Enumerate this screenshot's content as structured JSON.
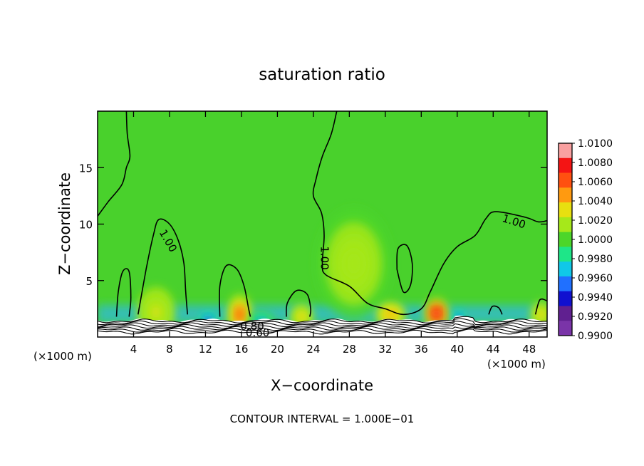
{
  "chart_data": {
    "type": "heatmap",
    "title": "saturation ratio",
    "xlabel": "X−coordinate",
    "ylabel": "Z−coordinate",
    "x_unit": "(×1000 m)",
    "x_unit_right": "(×1000 m)",
    "xlim": [
      0,
      50
    ],
    "ylim": [
      0,
      20
    ],
    "x_ticks": [
      4,
      8,
      12,
      16,
      20,
      24,
      28,
      32,
      36,
      40,
      44,
      48
    ],
    "y_ticks": [
      5,
      10,
      15
    ],
    "footer": "CONTOUR INTERVAL = 1.000E−01",
    "colorbar": {
      "labels": [
        "1.0100",
        "1.0080",
        "1.0060",
        "1.0040",
        "1.0020",
        "1.0000",
        "0.9980",
        "0.9960",
        "0.9940",
        "0.9920",
        "0.9900"
      ],
      "colors": [
        "#f9a0a0",
        "#f41414",
        "#ff5010",
        "#ff9a10",
        "#e8e010",
        "#a6e81a",
        "#4cd62a",
        "#1ee688",
        "#10c8e8",
        "#2070ff",
        "#1010d0",
        "#602090",
        "#7a34a8"
      ]
    },
    "contour_labels": [
      {
        "text": "1.00",
        "x": 7.8,
        "z": 8.5,
        "rotate": 60
      },
      {
        "text": "1.00",
        "x": 25.2,
        "z": 7.0,
        "rotate": 90
      },
      {
        "text": "1.00",
        "x": 46.3,
        "z": 10.2,
        "rotate": 18
      },
      {
        "text": "0.80",
        "x": 17.2,
        "z": 0.9,
        "rotate": 0
      },
      {
        "text": "0.60",
        "x": 17.8,
        "z": 0.35,
        "rotate": 0
      }
    ],
    "field": {
      "base_color": "#49d12c",
      "surface_band_color": "#35c0b0",
      "plumes": [
        {
          "x": 6.5,
          "z": 2.2,
          "sx": 1.5,
          "sz": 1.6,
          "level": 1.0028
        },
        {
          "x": 15.8,
          "z": 2.0,
          "sx": 1.0,
          "sz": 1.3,
          "level": 1.006
        },
        {
          "x": 22.7,
          "z": 1.8,
          "sx": 0.9,
          "sz": 0.8,
          "level": 1.0035
        },
        {
          "x": 28.5,
          "z": 6.5,
          "sx": 3.0,
          "sz": 3.5,
          "level": 1.0012
        },
        {
          "x": 32.6,
          "z": 2.0,
          "sx": 1.2,
          "sz": 0.8,
          "level": 1.0045
        },
        {
          "x": 37.7,
          "z": 2.1,
          "sx": 1.0,
          "sz": 1.0,
          "level": 1.0075
        },
        {
          "x": 49.3,
          "z": 2.0,
          "sx": 0.8,
          "sz": 0.8,
          "level": 1.0035
        }
      ],
      "dry_spots": [
        {
          "x": 12.3,
          "z": 1.5,
          "sx": 0.6,
          "sz": 0.5,
          "level": 0.994
        },
        {
          "x": 18.2,
          "z": 1.5,
          "sx": 1.0,
          "sz": 0.5,
          "level": 0.9955
        },
        {
          "x": 40.2,
          "z": 1.7,
          "sx": 0.4,
          "sz": 0.5,
          "level": 0.9935
        }
      ]
    },
    "contours_one": [
      [
        [
          0.0,
          10.7
        ],
        [
          1.2,
          12.0
        ],
        [
          2.7,
          13.5
        ],
        [
          3.2,
          15.0
        ],
        [
          3.6,
          16.0
        ],
        [
          3.3,
          18.0
        ],
        [
          3.2,
          20.0
        ]
      ],
      [
        [
          26.6,
          20.0
        ],
        [
          26.0,
          18.0
        ],
        [
          25.0,
          16.0
        ],
        [
          24.3,
          14.0
        ],
        [
          24.0,
          12.5
        ],
        [
          24.9,
          11.0
        ],
        [
          25.2,
          9.0
        ],
        [
          25.0,
          6.5
        ],
        [
          25.4,
          5.5
        ],
        [
          28.0,
          4.5
        ],
        [
          30.0,
          3.0
        ],
        [
          32.0,
          2.5
        ],
        [
          34.0,
          2.0
        ],
        [
          36.0,
          2.5
        ],
        [
          37.0,
          4.0
        ],
        [
          38.5,
          6.5
        ],
        [
          40.0,
          8.0
        ],
        [
          42.0,
          9.0
        ],
        [
          43.2,
          10.5
        ],
        [
          44.3,
          11.1
        ],
        [
          47.6,
          10.6
        ],
        [
          49.0,
          10.2
        ],
        [
          50.0,
          10.3
        ]
      ],
      [
        [
          4.5,
          2.0
        ],
        [
          5.4,
          6.0
        ],
        [
          6.2,
          9.0
        ],
        [
          6.8,
          10.4
        ],
        [
          8.0,
          10.0
        ],
        [
          9.0,
          8.5
        ],
        [
          9.6,
          6.5
        ],
        [
          9.8,
          4.0
        ],
        [
          10.0,
          2.0
        ]
      ],
      [
        [
          2.1,
          1.8
        ],
        [
          2.3,
          4.0
        ],
        [
          2.8,
          5.8
        ],
        [
          3.5,
          5.8
        ],
        [
          3.7,
          3.5
        ],
        [
          3.5,
          1.8
        ]
      ],
      [
        [
          13.6,
          1.8
        ],
        [
          13.6,
          4.5
        ],
        [
          14.3,
          6.3
        ],
        [
          15.5,
          6.0
        ],
        [
          16.3,
          4.5
        ],
        [
          16.8,
          2.5
        ],
        [
          17.0,
          1.8
        ]
      ],
      [
        [
          21.0,
          1.8
        ],
        [
          21.1,
          3.0
        ],
        [
          22.1,
          4.1
        ],
        [
          23.3,
          3.8
        ],
        [
          23.7,
          2.5
        ],
        [
          23.6,
          1.8
        ]
      ],
      [
        [
          33.3,
          6.0
        ],
        [
          33.4,
          7.8
        ],
        [
          34.4,
          8.1
        ],
        [
          35.0,
          6.5
        ],
        [
          34.8,
          4.6
        ],
        [
          34.0,
          4.0
        ],
        [
          33.3,
          6.0
        ]
      ],
      [
        [
          43.5,
          2.0
        ],
        [
          43.9,
          2.7
        ],
        [
          44.6,
          2.6
        ],
        [
          45.0,
          2.0
        ]
      ],
      [
        [
          48.7,
          2.0
        ],
        [
          49.2,
          3.3
        ],
        [
          50.0,
          3.2
        ]
      ]
    ]
  }
}
